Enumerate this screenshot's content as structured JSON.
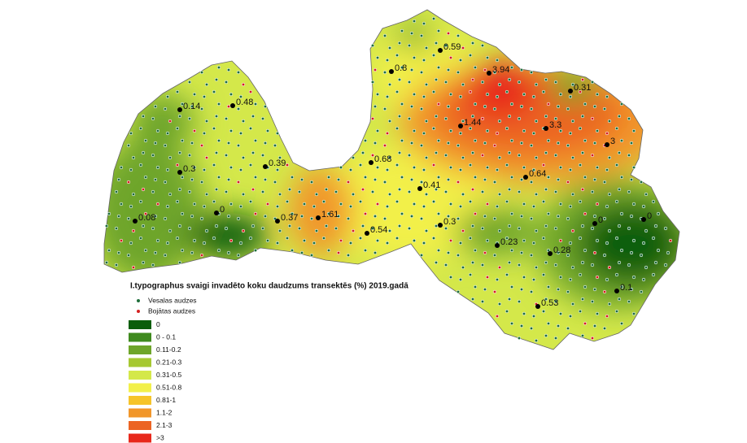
{
  "map": {
    "labels": [
      "0.14",
      "0.48",
      "0.3",
      "0.39",
      "0.08",
      "0",
      "0.37",
      "1.61",
      "0.68",
      "0.41",
      "0.54",
      "0.3",
      "0.23",
      "0.28",
      "0",
      "0",
      "0.1",
      "0.53",
      "0.8",
      "0.59",
      "3.94",
      "0.31",
      "1.44",
      "3.3",
      "3",
      "0.64"
    ]
  },
  "legend": {
    "title": "I.typographus svaigi invadēto koku daudzums transektēs (%) 2019.gadā",
    "points": [
      {
        "label": "Vesalas audzes",
        "color": "#1f6e3a"
      },
      {
        "label": "Bojātas audzes",
        "color": "#d42020"
      }
    ],
    "classes": [
      {
        "label": "0",
        "color": "#0b5e0b"
      },
      {
        "label": "0 - 0.1",
        "color": "#3f8a1e"
      },
      {
        "label": "0.11-0.2",
        "color": "#6ea52a"
      },
      {
        "label": "0.21-0.3",
        "color": "#a6c832"
      },
      {
        "label": "0.31-0.5",
        "color": "#d4e84a"
      },
      {
        "label": "0.51-0.8",
        "color": "#f2f04a"
      },
      {
        "label": "0.81-1",
        "color": "#f6c42a"
      },
      {
        "label": "1.1-2",
        "color": "#f1962a"
      },
      {
        "label": "2.1-3",
        "color": "#ec6424"
      },
      {
        "label": ">3",
        "color": "#e8281c"
      }
    ]
  }
}
